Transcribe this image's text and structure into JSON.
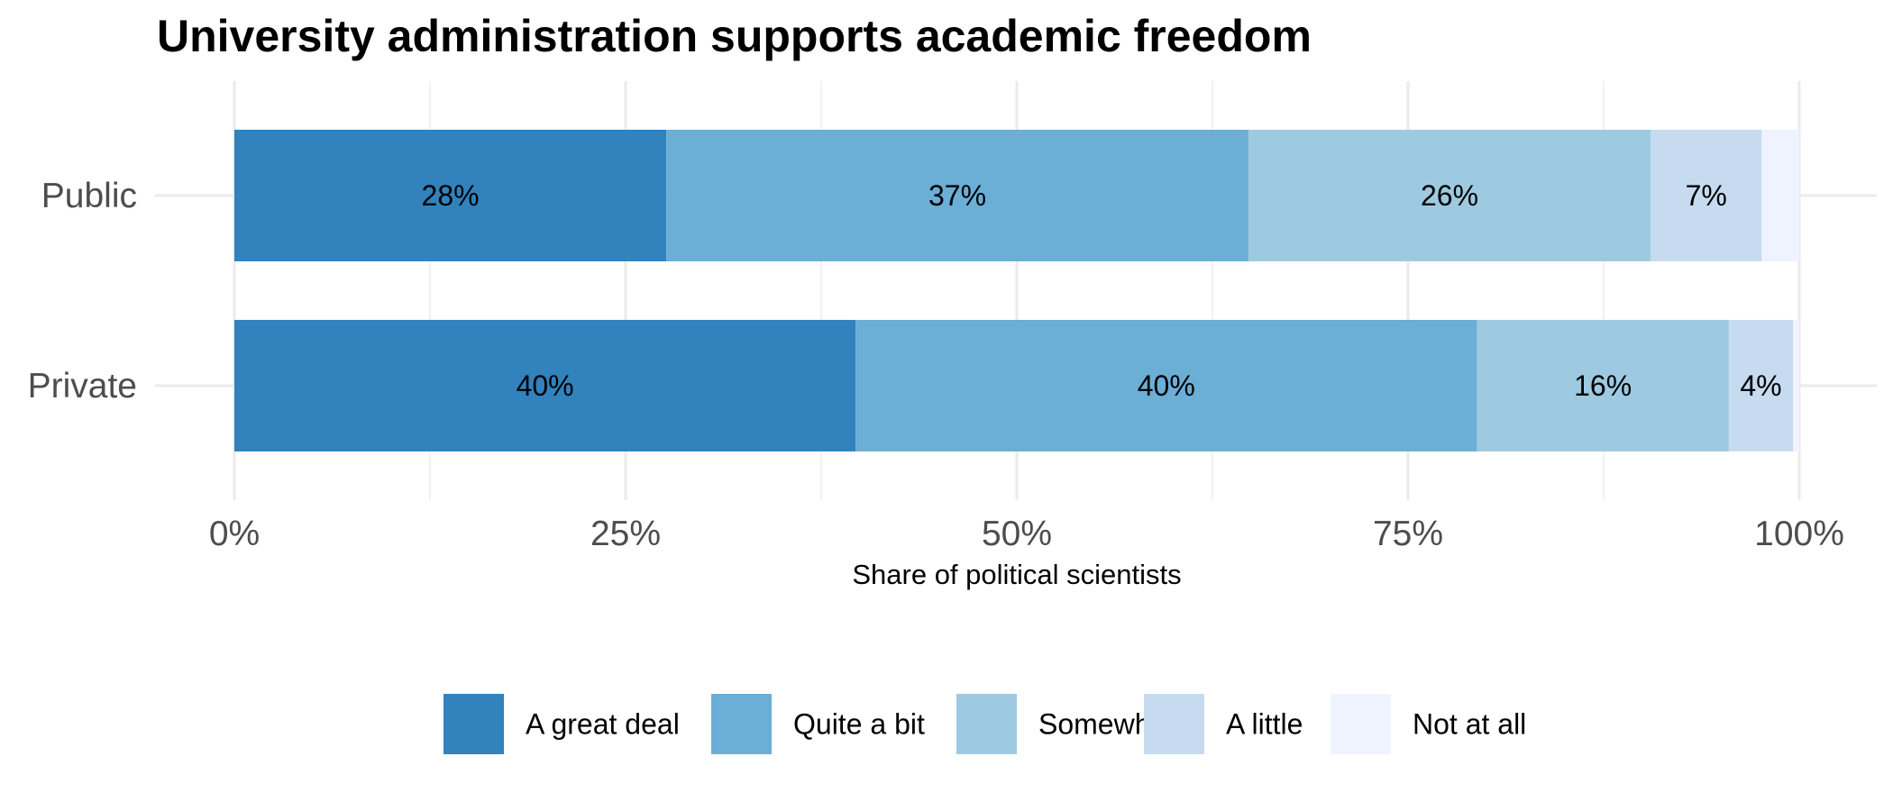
{
  "chart_data": {
    "type": "bar",
    "orientation": "horizontal",
    "stacked": true,
    "title": "University administration supports academic freedom",
    "xlabel": "Share of political scientists",
    "ylabel": "",
    "xlim": [
      0,
      100
    ],
    "x_ticks": [
      "0%",
      "25%",
      "50%",
      "75%",
      "100%"
    ],
    "x_tick_values": [
      0,
      25,
      50,
      75,
      100
    ],
    "grid": true,
    "legend_position": "bottom",
    "categories": [
      "Public",
      "Private"
    ],
    "series": [
      {
        "name": "A great deal",
        "color": "#3182bd",
        "values": [
          27.6,
          39.7
        ],
        "labels": [
          "28%",
          "40%"
        ]
      },
      {
        "name": "Quite a bit",
        "color": "#6baed6",
        "values": [
          37.2,
          39.7
        ],
        "labels": [
          "37%",
          "40%"
        ]
      },
      {
        "name": "Somewhat",
        "color": "#9ecae1",
        "values": [
          25.7,
          16.1
        ],
        "labels": [
          "26%",
          "16%"
        ]
      },
      {
        "name": "A little",
        "color": "#c6dbef",
        "values": [
          7.1,
          4.1
        ],
        "labels": [
          "7%",
          "4%"
        ]
      },
      {
        "name": "Not at all",
        "color": "#eff3ff",
        "values": [
          2.4,
          0.4
        ],
        "labels": [
          "",
          ""
        ]
      }
    ]
  }
}
